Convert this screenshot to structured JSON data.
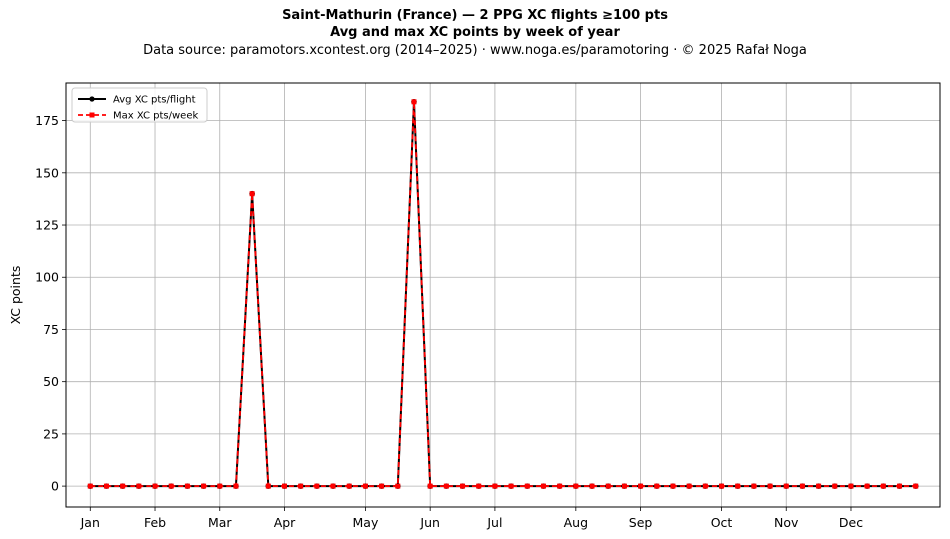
{
  "chart_data": {
    "type": "line",
    "title": "Saint-Mathurin (France)  —  2 PPG XC flights ≥100 pts",
    "subtitle": "Avg and max XC points by week of year",
    "source_line": "Data source: paramotors.xcontest.org (2014–2025)  ·  www.noga.es/paramotoring  ·  © 2025 Rafał Noga",
    "xlabel": "",
    "ylabel": "XC points",
    "ylim": [
      -10,
      193
    ],
    "xlim": [
      -1.5,
      52.5
    ],
    "x": [
      0,
      1,
      2,
      3,
      4,
      5,
      6,
      7,
      8,
      9,
      10,
      11,
      12,
      13,
      14,
      15,
      16,
      17,
      18,
      19,
      20,
      21,
      22,
      23,
      24,
      25,
      26,
      27,
      28,
      29,
      30,
      31,
      32,
      33,
      34,
      35,
      36,
      37,
      38,
      39,
      40,
      41,
      42,
      43,
      44,
      45,
      46,
      47,
      48,
      49,
      50,
      51
    ],
    "yticks": [
      0,
      25,
      50,
      75,
      100,
      125,
      150,
      175
    ],
    "month_ticks": [
      {
        "label": "Jan",
        "x": 0
      },
      {
        "label": "Feb",
        "x": 4
      },
      {
        "label": "Mar",
        "x": 8
      },
      {
        "label": "Apr",
        "x": 12
      },
      {
        "label": "May",
        "x": 17
      },
      {
        "label": "Jun",
        "x": 21
      },
      {
        "label": "Jul",
        "x": 25
      },
      {
        "label": "Aug",
        "x": 30
      },
      {
        "label": "Sep",
        "x": 34
      },
      {
        "label": "Oct",
        "x": 39
      },
      {
        "label": "Nov",
        "x": 43
      },
      {
        "label": "Dec",
        "x": 47
      }
    ],
    "grid": true,
    "legend_position": "top-left",
    "series": [
      {
        "name": "Avg XC pts/flight",
        "color": "#000000",
        "style": "solid",
        "marker": "circle",
        "values": [
          0,
          0,
          0,
          0,
          0,
          0,
          0,
          0,
          0,
          0,
          140,
          0,
          0,
          0,
          0,
          0,
          0,
          0,
          0,
          0,
          184,
          0,
          0,
          0,
          0,
          0,
          0,
          0,
          0,
          0,
          0,
          0,
          0,
          0,
          0,
          0,
          0,
          0,
          0,
          0,
          0,
          0,
          0,
          0,
          0,
          0,
          0,
          0,
          0,
          0,
          0,
          0
        ]
      },
      {
        "name": "Max XC pts/week",
        "color": "#ff0000",
        "style": "dashed",
        "marker": "square",
        "values": [
          0,
          0,
          0,
          0,
          0,
          0,
          0,
          0,
          0,
          0,
          140,
          0,
          0,
          0,
          0,
          0,
          0,
          0,
          0,
          0,
          184,
          0,
          0,
          0,
          0,
          0,
          0,
          0,
          0,
          0,
          0,
          0,
          0,
          0,
          0,
          0,
          0,
          0,
          0,
          0,
          0,
          0,
          0,
          0,
          0,
          0,
          0,
          0,
          0,
          0,
          0,
          0
        ]
      }
    ]
  }
}
